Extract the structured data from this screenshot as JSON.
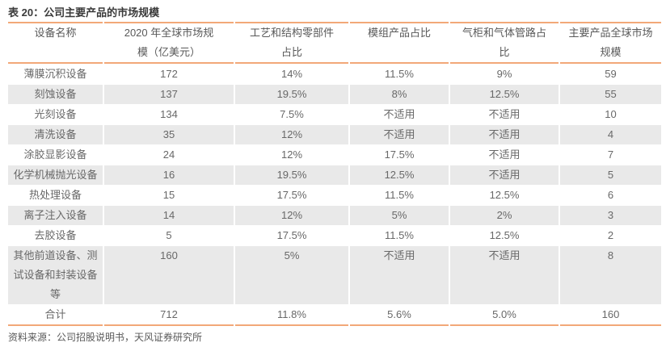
{
  "title": "表 20：公司主要产品的市场规模",
  "source": "资料来源：公司招股说明书，天风证券研究所",
  "colors": {
    "accent_border": "#f2a878",
    "alt_row_bg": "#e9e9e9",
    "body_text": "#686868",
    "header_text": "#595959",
    "title_text": "#3a3a3a"
  },
  "table": {
    "columns": [
      "设备名称",
      "2020 年全球市场规\n模（亿美元）",
      "工艺和结构零部件\n占比",
      "模组产品占比",
      "气柜和气体管路占\n比",
      "主要产品全球市场\n规模"
    ],
    "rows": [
      {
        "cells": [
          "薄膜沉积设备",
          "172",
          "14%",
          "11.5%",
          "9%",
          "59"
        ],
        "alt": false,
        "total": false
      },
      {
        "cells": [
          "刻蚀设备",
          "137",
          "19.5%",
          "8%",
          "12.5%",
          "55"
        ],
        "alt": true,
        "total": false
      },
      {
        "cells": [
          "光刻设备",
          "134",
          "7.5%",
          "不适用",
          "不适用",
          "10"
        ],
        "alt": false,
        "total": false
      },
      {
        "cells": [
          "清洗设备",
          "35",
          "12%",
          "不适用",
          "不适用",
          "4"
        ],
        "alt": true,
        "total": false
      },
      {
        "cells": [
          "涂胶显影设备",
          "24",
          "12%",
          "17.5%",
          "不适用",
          "7"
        ],
        "alt": false,
        "total": false
      },
      {
        "cells": [
          "化学机械抛光设备",
          "16",
          "19.5%",
          "12.5%",
          "不适用",
          "5"
        ],
        "alt": true,
        "total": false
      },
      {
        "cells": [
          "热处理设备",
          "15",
          "17.5%",
          "11.5%",
          "12.5%",
          "6"
        ],
        "alt": false,
        "total": false
      },
      {
        "cells": [
          "离子注入设备",
          "14",
          "12%",
          "5%",
          "2%",
          "3"
        ],
        "alt": true,
        "total": false
      },
      {
        "cells": [
          "去胶设备",
          "5",
          "17.5%",
          "11.5%",
          "12.5%",
          "2"
        ],
        "alt": false,
        "total": false
      },
      {
        "cells": [
          "其他前道设备、测\n试设备和封装设备\n等",
          "160",
          "5%",
          "不适用",
          "不适用",
          "8"
        ],
        "alt": true,
        "total": false
      },
      {
        "cells": [
          "合计",
          "712",
          "11.8%",
          "5.6%",
          "5.0%",
          "160"
        ],
        "alt": false,
        "total": true
      }
    ]
  }
}
